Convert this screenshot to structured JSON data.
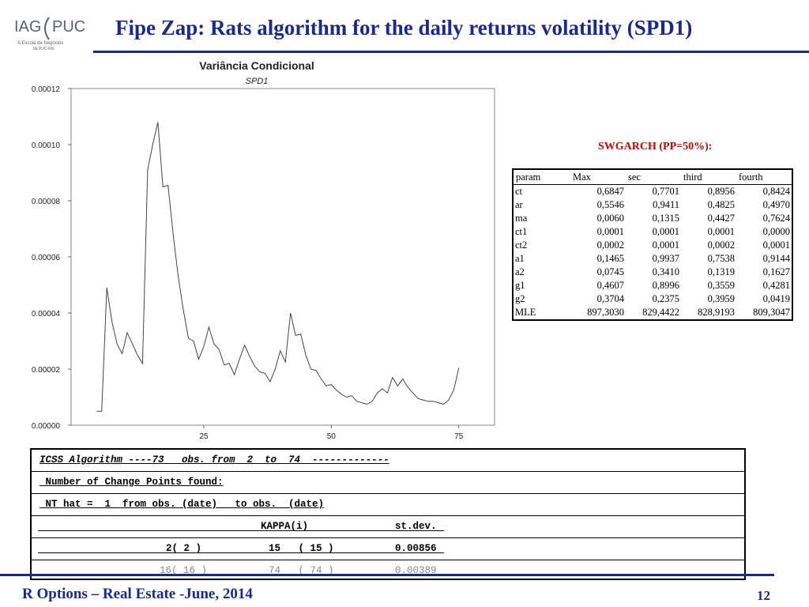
{
  "logo": {
    "text_left": "IAG",
    "text_right": "PUC",
    "subtitle_line1": "A Escola de Negócios",
    "subtitle_line2": "da PUC-Rio"
  },
  "slide": {
    "title": "Fipe Zap: Rats algorithm for the daily returns volatility (SPD1)"
  },
  "chart_data": {
    "type": "line",
    "title": "Variância Condicional",
    "subtitle": "SPD1",
    "xlim": [
      -1,
      82
    ],
    "ylim": [
      0,
      0.00012
    ],
    "x_ticks": [
      25,
      50,
      75
    ],
    "y_ticks": [
      "0.00012",
      "0.00010",
      "0.00008",
      "0.00006",
      "0.00004",
      "0.00002",
      "0.00000"
    ],
    "series": [
      {
        "x": [
          4,
          5,
          6,
          7,
          8,
          9,
          10,
          11,
          12,
          13,
          14,
          15,
          16,
          17,
          18,
          19,
          20,
          21,
          22,
          23,
          24,
          25,
          26,
          27,
          28,
          29,
          30,
          31,
          32,
          33,
          34,
          35,
          36,
          37,
          38,
          39,
          40,
          41,
          42,
          43,
          44,
          45,
          46,
          47,
          48,
          49,
          50,
          51,
          52,
          53,
          54,
          55,
          56,
          57,
          58,
          59,
          60,
          61,
          62,
          63,
          64,
          65,
          66,
          67,
          68,
          69,
          70,
          71,
          72,
          73,
          74,
          75
        ],
        "y": [
          5e-06,
          5e-06,
          4.9e-05,
          3.7e-05,
          2.9e-05,
          2.55e-05,
          3.3e-05,
          2.9e-05,
          2.5e-05,
          2.2e-05,
          9.1e-05,
          0.0001,
          0.000108,
          8.5e-05,
          8.55e-05,
          6.8e-05,
          5.3e-05,
          4.1e-05,
          3.1e-05,
          3e-05,
          2.35e-05,
          2.8e-05,
          3.5e-05,
          2.9e-05,
          2.7e-05,
          2.15e-05,
          2.2e-05,
          1.8e-05,
          2.35e-05,
          2.85e-05,
          2.45e-05,
          2.1e-05,
          1.9e-05,
          1.85e-05,
          1.55e-05,
          2e-05,
          2.65e-05,
          2.25e-05,
          4e-05,
          3.2e-05,
          3.25e-05,
          2.5e-05,
          2e-05,
          1.95e-05,
          1.65e-05,
          1.4e-05,
          1.45e-05,
          1.25e-05,
          1.1e-05,
          1e-05,
          1.05e-05,
          8.5e-06,
          8e-06,
          7.5e-06,
          8.5e-06,
          1.15e-05,
          1.3e-05,
          1.15e-05,
          1.7e-05,
          1.4e-05,
          1.65e-05,
          1.35e-05,
          1.15e-05,
          9.5e-06,
          9e-06,
          8.5e-06,
          8.5e-06,
          8e-06,
          7.5e-06,
          9e-06,
          1.25e-05,
          2.05e-05
        ]
      }
    ]
  },
  "swgarch": {
    "title": "SWGARCH (PP=50%):",
    "headers": [
      "param",
      "Max",
      "sec",
      "third",
      "fourth"
    ],
    "rows": [
      [
        "ct",
        "0,6847",
        "0,7701",
        "0,8956",
        "0,8424"
      ],
      [
        "ar",
        "0,5546",
        "0,9411",
        "0,4825",
        "0,4970"
      ],
      [
        "ma",
        "0,0060",
        "0,1315",
        "0,4427",
        "0,7624"
      ],
      [
        "ct1",
        "0,0001",
        "0,0001",
        "0,0001",
        "0,0000"
      ],
      [
        "ct2",
        "0,0002",
        "0,0001",
        "0,0002",
        "0,0001"
      ],
      [
        "a1",
        "0,1465",
        "0,9937",
        "0,7538",
        "0,9144"
      ],
      [
        "a2",
        "0,0745",
        "0,3410",
        "0,1319",
        "0,1627"
      ],
      [
        "g1",
        "0,4607",
        "0,8996",
        "0,3559",
        "0,4281"
      ],
      [
        "g2",
        "0,3704",
        "0,2375",
        "0,3959",
        "0,0419"
      ],
      [
        "MLE",
        "897,3030",
        "829,4422",
        "828,9193",
        "809,3047"
      ]
    ]
  },
  "icss": {
    "line1": "ICSS Algorithm ----73   obs. from  2  to  74  -------------",
    "line2": " Number of Change Points found:",
    "line3": " NT hat =  1  from obs. (date)   to obs.  (date)",
    "line4_kappa": "KAPPA(i)",
    "line4_stdev": "st.dev.",
    "line5_idx": "2( 2 )",
    "line5_obs": "15   ( 15 )",
    "line5_val": "0.00856",
    "line6_idx": "16( 16 )",
    "line6_obs": "74   ( 74 )",
    "line6_val": "0.00389"
  },
  "footer": {
    "text": "R Options – Real Estate -June, 2014",
    "page": "12"
  },
  "colors": {
    "accent": "#1a2a8a",
    "highlight": "#cc0000"
  }
}
